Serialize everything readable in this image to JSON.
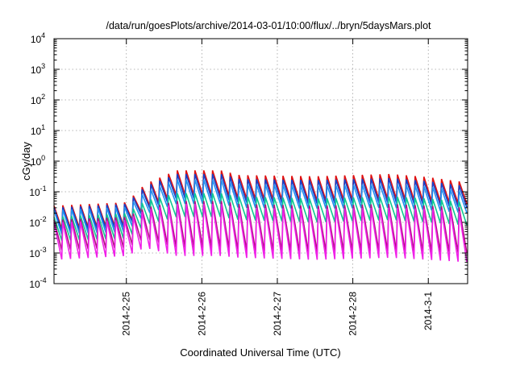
{
  "chart_data": {
    "type": "line",
    "title": "/data/run/goesPlots/archive/2014-03-01/10:00/flux/../bryn/5daysMars.plot",
    "xlabel": "Coordinated Universal Time (UTC)",
    "ylabel": "cGy/day",
    "xlim": [
      "2014-02-24 01:00",
      "2014-03-01 12:30"
    ],
    "ylim": [
      0.0001,
      10000
    ],
    "y_scale": "log",
    "grid": true,
    "legend": "none",
    "x_ticks": [
      {
        "date": "2014-02-25",
        "label": "2014-2-25"
      },
      {
        "date": "2014-02-26",
        "label": "2014-2-26"
      },
      {
        "date": "2014-02-27",
        "label": "2014-2-27"
      },
      {
        "date": "2014-02-28",
        "label": "2014-2-28"
      },
      {
        "date": "2014-03-01",
        "label": "2014-3-1"
      }
    ],
    "y_ticks": [
      {
        "value": 0.0001,
        "base": "10",
        "exp": "-4"
      },
      {
        "value": 0.001,
        "base": "10",
        "exp": "-3"
      },
      {
        "value": 0.01,
        "base": "10",
        "exp": "-2"
      },
      {
        "value": 0.1,
        "base": "10",
        "exp": "-1"
      },
      {
        "value": 1,
        "base": "10",
        "exp": "0"
      },
      {
        "value": 10,
        "base": "10",
        "exp": "1"
      },
      {
        "value": 100,
        "base": "10",
        "exp": "2"
      },
      {
        "value": 1000,
        "base": "10",
        "exp": "3"
      },
      {
        "value": 10000,
        "base": "10",
        "exp": "4"
      }
    ],
    "sawtooth_period_hours": 2.8,
    "series": [
      {
        "color": "#e01010",
        "points": [
          {
            "x": "2014-02-24 01:00",
            "peak": 0.035,
            "trough": 0.006
          },
          {
            "x": "2014-02-25 00:00",
            "peak": 0.045,
            "trough": 0.008
          },
          {
            "x": "2014-02-25 06:00",
            "peak": 0.18,
            "trough": 0.03
          },
          {
            "x": "2014-02-25 16:00",
            "peak": 0.5,
            "trough": 0.08
          },
          {
            "x": "2014-02-26 06:00",
            "peak": 0.5,
            "trough": 0.08
          },
          {
            "x": "2014-02-26 12:00",
            "peak": 0.35,
            "trough": 0.06
          },
          {
            "x": "2014-02-27 12:00",
            "peak": 0.32,
            "trough": 0.05
          },
          {
            "x": "2014-02-28 12:00",
            "peak": 0.38,
            "trough": 0.06
          },
          {
            "x": "2014-03-01 00:00",
            "peak": 0.3,
            "trough": 0.05
          },
          {
            "x": "2014-03-01 12:30",
            "peak": 0.2,
            "trough": 0.04
          }
        ]
      },
      {
        "color": "#1540c8",
        "points": [
          {
            "x": "2014-02-24 01:00",
            "peak": 0.03,
            "trough": 0.005
          },
          {
            "x": "2014-02-25 00:00",
            "peak": 0.04,
            "trough": 0.007
          },
          {
            "x": "2014-02-25 06:00",
            "peak": 0.15,
            "trough": 0.025
          },
          {
            "x": "2014-02-25 16:00",
            "peak": 0.38,
            "trough": 0.06
          },
          {
            "x": "2014-02-26 06:00",
            "peak": 0.38,
            "trough": 0.06
          },
          {
            "x": "2014-02-26 12:00",
            "peak": 0.26,
            "trough": 0.045
          },
          {
            "x": "2014-02-27 12:00",
            "peak": 0.24,
            "trough": 0.04
          },
          {
            "x": "2014-02-28 12:00",
            "peak": 0.28,
            "trough": 0.045
          },
          {
            "x": "2014-03-01 00:00",
            "peak": 0.22,
            "trough": 0.038
          },
          {
            "x": "2014-03-01 12:30",
            "peak": 0.15,
            "trough": 0.03
          }
        ]
      },
      {
        "color": "#2090f0",
        "points": [
          {
            "x": "2014-02-24 01:00",
            "peak": 0.025,
            "trough": 0.004
          },
          {
            "x": "2014-02-25 00:00",
            "peak": 0.032,
            "trough": 0.005
          },
          {
            "x": "2014-02-25 06:00",
            "peak": 0.1,
            "trough": 0.018
          },
          {
            "x": "2014-02-25 16:00",
            "peak": 0.25,
            "trough": 0.04
          },
          {
            "x": "2014-02-26 06:00",
            "peak": 0.25,
            "trough": 0.04
          },
          {
            "x": "2014-02-26 12:00",
            "peak": 0.18,
            "trough": 0.03
          },
          {
            "x": "2014-02-27 12:00",
            "peak": 0.16,
            "trough": 0.028
          },
          {
            "x": "2014-02-28 12:00",
            "peak": 0.18,
            "trough": 0.03
          },
          {
            "x": "2014-03-01 00:00",
            "peak": 0.15,
            "trough": 0.025
          },
          {
            "x": "2014-03-01 12:30",
            "peak": 0.1,
            "trough": 0.02
          }
        ]
      },
      {
        "color": "#10c890",
        "points": [
          {
            "x": "2014-02-24 01:00",
            "peak": 0.015,
            "trough": 0.0025
          },
          {
            "x": "2014-02-25 00:00",
            "peak": 0.02,
            "trough": 0.003
          },
          {
            "x": "2014-02-25 06:00",
            "peak": 0.05,
            "trough": 0.008
          },
          {
            "x": "2014-02-25 16:00",
            "peak": 0.09,
            "trough": 0.015
          },
          {
            "x": "2014-02-26 06:00",
            "peak": 0.09,
            "trough": 0.015
          },
          {
            "x": "2014-02-26 12:00",
            "peak": 0.07,
            "trough": 0.012
          },
          {
            "x": "2014-02-27 12:00",
            "peak": 0.06,
            "trough": 0.01
          },
          {
            "x": "2014-02-28 12:00",
            "peak": 0.07,
            "trough": 0.012
          },
          {
            "x": "2014-03-01 00:00",
            "peak": 0.06,
            "trough": 0.01
          },
          {
            "x": "2014-03-01 12:30",
            "peak": 0.045,
            "trough": 0.008
          }
        ]
      },
      {
        "color": "#b01080",
        "points": [
          {
            "x": "2014-02-24 01:00",
            "peak": 0.012,
            "trough": 0.0012
          },
          {
            "x": "2014-02-25 00:00",
            "peak": 0.015,
            "trough": 0.0015
          },
          {
            "x": "2014-02-25 06:00",
            "peak": 0.03,
            "trough": 0.003
          },
          {
            "x": "2014-02-25 16:00",
            "peak": 0.05,
            "trough": 0.0015
          },
          {
            "x": "2014-02-26 06:00",
            "peak": 0.05,
            "trough": 0.0015
          },
          {
            "x": "2014-02-26 12:00",
            "peak": 0.04,
            "trough": 0.0012
          },
          {
            "x": "2014-02-27 12:00",
            "peak": 0.035,
            "trough": 0.0011
          },
          {
            "x": "2014-02-28 12:00",
            "peak": 0.04,
            "trough": 0.0012
          },
          {
            "x": "2014-03-01 00:00",
            "peak": 0.035,
            "trough": 0.0011
          },
          {
            "x": "2014-03-01 12:30",
            "peak": 0.03,
            "trough": 0.001
          }
        ]
      },
      {
        "color": "#f020e8",
        "points": [
          {
            "x": "2014-02-24 01:00",
            "peak": 0.01,
            "trough": 0.0006
          },
          {
            "x": "2014-02-25 00:00",
            "peak": 0.012,
            "trough": 0.0008
          },
          {
            "x": "2014-02-25 06:00",
            "peak": 0.025,
            "trough": 0.0015
          },
          {
            "x": "2014-02-25 16:00",
            "peak": 0.04,
            "trough": 0.0008
          },
          {
            "x": "2014-02-26 06:00",
            "peak": 0.04,
            "trough": 0.0008
          },
          {
            "x": "2014-02-26 12:00",
            "peak": 0.03,
            "trough": 0.0007
          },
          {
            "x": "2014-02-27 12:00",
            "peak": 0.028,
            "trough": 0.0006
          },
          {
            "x": "2014-02-28 12:00",
            "peak": 0.03,
            "trough": 0.0007
          },
          {
            "x": "2014-03-01 00:00",
            "peak": 0.028,
            "trough": 0.0006
          },
          {
            "x": "2014-03-01 12:30",
            "peak": 0.022,
            "trough": 0.0005
          }
        ]
      }
    ]
  }
}
